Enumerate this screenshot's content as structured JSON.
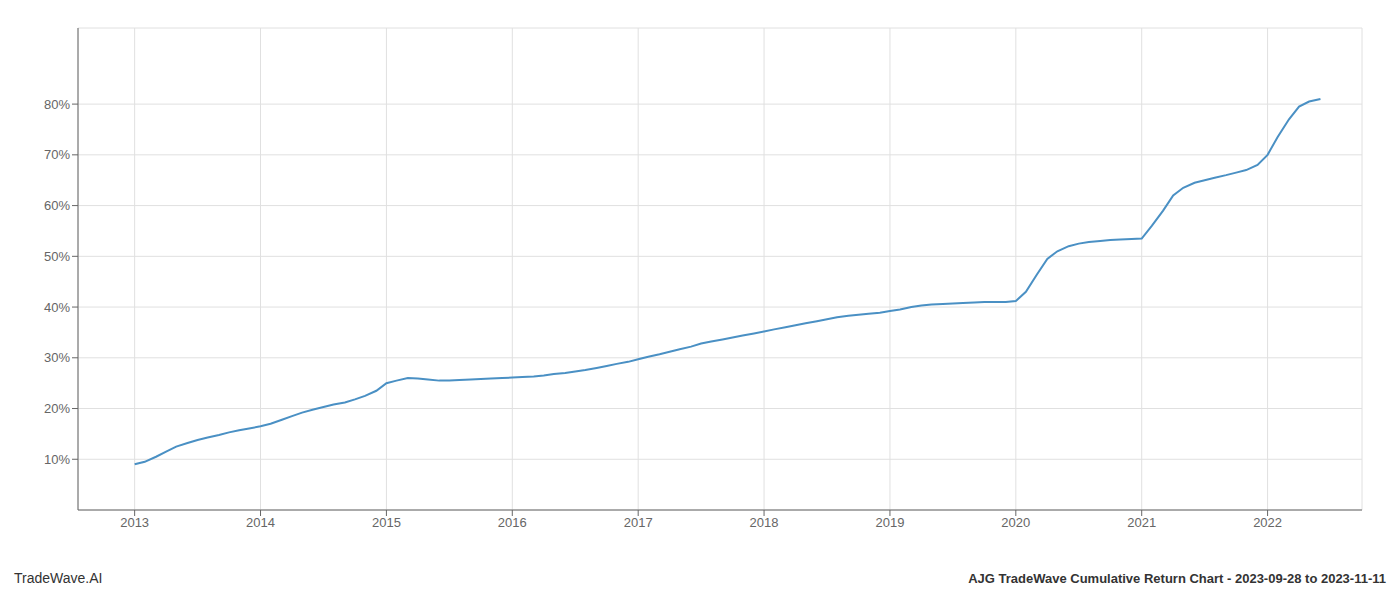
{
  "chart_data": {
    "type": "line",
    "title": "AJG TradeWave Cumulative Return Chart - 2023-09-28 to 2023-11-11",
    "annotations": [
      "TradeWave.AI"
    ],
    "x": [
      2013.0,
      2013.08,
      2013.17,
      2013.25,
      2013.33,
      2013.42,
      2013.5,
      2013.58,
      2013.67,
      2013.75,
      2013.83,
      2013.92,
      2014.0,
      2014.08,
      2014.17,
      2014.25,
      2014.33,
      2014.42,
      2014.5,
      2014.58,
      2014.67,
      2014.75,
      2014.83,
      2014.92,
      2015.0,
      2015.08,
      2015.17,
      2015.25,
      2015.33,
      2015.42,
      2015.5,
      2015.58,
      2015.67,
      2015.75,
      2015.83,
      2015.92,
      2016.0,
      2016.08,
      2016.17,
      2016.25,
      2016.33,
      2016.42,
      2016.5,
      2016.58,
      2016.67,
      2016.75,
      2016.83,
      2016.92,
      2017.0,
      2017.08,
      2017.17,
      2017.25,
      2017.33,
      2017.42,
      2017.5,
      2017.58,
      2017.67,
      2017.75,
      2017.83,
      2017.92,
      2018.0,
      2018.08,
      2018.17,
      2018.25,
      2018.33,
      2018.42,
      2018.5,
      2018.58,
      2018.67,
      2018.75,
      2018.83,
      2018.92,
      2019.0,
      2019.08,
      2019.17,
      2019.25,
      2019.33,
      2019.42,
      2019.5,
      2019.58,
      2019.67,
      2019.75,
      2019.83,
      2019.92,
      2020.0,
      2020.08,
      2020.17,
      2020.25,
      2020.33,
      2020.42,
      2020.5,
      2020.58,
      2020.67,
      2020.75,
      2020.83,
      2020.92,
      2021.0,
      2021.08,
      2021.17,
      2021.25,
      2021.33,
      2021.42,
      2021.5,
      2021.58,
      2021.67,
      2021.75,
      2021.83,
      2021.92,
      2022.0,
      2022.08,
      2022.17,
      2022.25,
      2022.33,
      2022.42
    ],
    "values": [
      9.0,
      9.5,
      10.5,
      11.5,
      12.5,
      13.2,
      13.8,
      14.3,
      14.8,
      15.3,
      15.7,
      16.1,
      16.5,
      17.0,
      17.8,
      18.5,
      19.2,
      19.8,
      20.3,
      20.8,
      21.2,
      21.8,
      22.5,
      23.5,
      25.0,
      25.5,
      26.0,
      25.9,
      25.7,
      25.5,
      25.5,
      25.6,
      25.7,
      25.8,
      25.9,
      26.0,
      26.1,
      26.2,
      26.3,
      26.5,
      26.8,
      27.0,
      27.3,
      27.6,
      28.0,
      28.4,
      28.8,
      29.2,
      29.7,
      30.2,
      30.7,
      31.2,
      31.7,
      32.2,
      32.8,
      33.2,
      33.6,
      34.0,
      34.4,
      34.8,
      35.2,
      35.6,
      36.0,
      36.4,
      36.8,
      37.2,
      37.6,
      38.0,
      38.3,
      38.5,
      38.7,
      38.9,
      39.2,
      39.5,
      40.0,
      40.3,
      40.5,
      40.6,
      40.7,
      40.8,
      40.9,
      41.0,
      41.0,
      41.0,
      41.2,
      43.0,
      46.5,
      49.5,
      51.0,
      52.0,
      52.5,
      52.8,
      53.0,
      53.2,
      53.3,
      53.4,
      53.5,
      56.0,
      59.0,
      62.0,
      63.5,
      64.5,
      65.0,
      65.5,
      66.0,
      66.5,
      67.0,
      68.0,
      70.0,
      73.5,
      77.0,
      79.5,
      80.5,
      81.0
    ],
    "color": "#4a90c4",
    "xlim": [
      2012.55,
      2022.75
    ],
    "xticks": [
      2013,
      2014,
      2015,
      2016,
      2017,
      2018,
      2019,
      2020,
      2021,
      2022
    ],
    "ylim": [
      0,
      95
    ],
    "yticks": [
      {
        "value": 10,
        "label": "10%"
      },
      {
        "value": 20,
        "label": "20%"
      },
      {
        "value": 30,
        "label": "30%"
      },
      {
        "value": 40,
        "label": "40%"
      },
      {
        "value": 50,
        "label": "50%"
      },
      {
        "value": 60,
        "label": "60%"
      },
      {
        "value": 70,
        "label": "70%"
      },
      {
        "value": 80,
        "label": "80%"
      }
    ],
    "grid": true
  }
}
